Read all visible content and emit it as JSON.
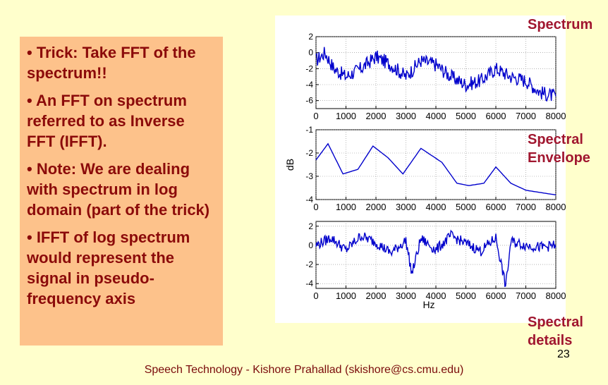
{
  "bullets": [
    "• Trick: Take FFT of the spectrum!!",
    "• An FFT on spectrum referred to as Inverse FFT (IFFT).",
    "• Note: We are dealing with spectrum in log domain (part of the trick)",
    "• IFFT of  log spectrum would represent the signal in pseudo-frequency axis"
  ],
  "labels": {
    "spectrum": "Spectrum",
    "envelope_1": "Spectral",
    "envelope_2": "Envelope",
    "details_1": "Spectral",
    "details_2": "details"
  },
  "page_number": "23",
  "footer": "Speech Technology - Kishore Prahallad (skishore@cs.cmu.edu)",
  "chart_data": [
    {
      "type": "line",
      "xlim": [
        0,
        8000
      ],
      "ylim": [
        -7,
        2
      ],
      "xticks": [
        "0",
        "1000",
        "2000",
        "3000",
        "4000",
        "5000",
        "6000",
        "7000",
        "8000"
      ],
      "yticks": [
        "2",
        "0",
        "-2",
        "-4",
        "-6"
      ],
      "x": [
        0,
        300,
        600,
        1000,
        1500,
        2000,
        2500,
        3000,
        3500,
        4000,
        4500,
        5000,
        5500,
        6000,
        6500,
        7000,
        7500,
        8000
      ],
      "values": [
        -1,
        0,
        -2,
        -3,
        -2,
        -0.5,
        -1.5,
        -3,
        -1,
        -1.5,
        -3,
        -4,
        -3.5,
        -2,
        -3,
        -3.5,
        -5,
        -5.5
      ],
      "color": "#0000cc"
    },
    {
      "type": "line",
      "xlim": [
        0,
        8000
      ],
      "ylim": [
        -4,
        -1
      ],
      "ylabel": "dB",
      "xticks": [
        "0",
        "1000",
        "2000",
        "3000",
        "4000",
        "5000",
        "6000",
        "7000",
        "8000"
      ],
      "yticks": [
        "-1",
        "-2",
        "-3",
        "-4"
      ],
      "x": [
        0,
        400,
        900,
        1400,
        1900,
        2400,
        2900,
        3500,
        4200,
        4700,
        5100,
        5600,
        6000,
        6500,
        7000,
        7500,
        8000
      ],
      "values": [
        -2.3,
        -1.6,
        -2.9,
        -2.7,
        -1.7,
        -2.2,
        -2.9,
        -1.8,
        -2.4,
        -3.3,
        -3.4,
        -3.3,
        -2.6,
        -3.3,
        -3.6,
        -3.7,
        -3.8
      ],
      "color": "#0000cc"
    },
    {
      "type": "line",
      "xlim": [
        0,
        8000
      ],
      "ylim": [
        -4.5,
        2.5
      ],
      "xlabel": "Hz",
      "xticks": [
        "0",
        "1000",
        "2000",
        "3000",
        "4000",
        "5000",
        "6000",
        "7000",
        "8000"
      ],
      "yticks": [
        "2",
        "0",
        "-2",
        "-4"
      ],
      "x": [
        0,
        500,
        1000,
        1500,
        2000,
        2500,
        3000,
        3200,
        3500,
        4000,
        4500,
        5000,
        5500,
        6000,
        6330,
        6500,
        7000,
        7500,
        8000
      ],
      "values": [
        0,
        0.8,
        -0.5,
        1,
        0.3,
        -0.8,
        0.5,
        -3,
        0.7,
        -0.5,
        1,
        0.2,
        -0.6,
        0.8,
        -4.3,
        0.4,
        0,
        -0.2,
        0
      ],
      "color": "#0000cc"
    }
  ]
}
